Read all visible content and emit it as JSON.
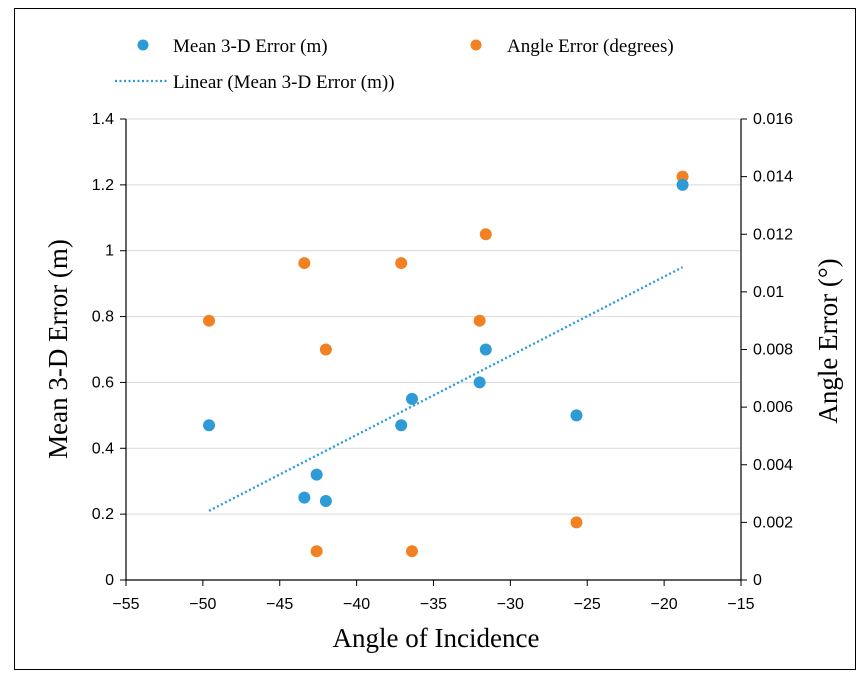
{
  "chart_data": {
    "type": "scatter",
    "xlabel": "Angle of Incidence",
    "ylabel": "Mean 3-D Error (m)",
    "y2label": "Angle Error (°)",
    "xlim": [
      -55,
      -15
    ],
    "ylim": [
      0,
      1.4
    ],
    "y2lim": [
      0,
      0.016
    ],
    "xticks": [
      "−55",
      "−50",
      "−45",
      "−40",
      "−35",
      "−30",
      "−25",
      "−20",
      "−15"
    ],
    "yticks": [
      "0",
      "0.2",
      "0.4",
      "0.6",
      "0.8",
      "1",
      "1.2",
      "1.4"
    ],
    "y2ticks": [
      "0",
      "0.002",
      "0.004",
      "0.006",
      "0.008",
      "0.01",
      "0.012",
      "0.014",
      "0.016"
    ],
    "grid": "horizontal",
    "legend_position": "top",
    "series": [
      {
        "name": "Mean 3-D Error (m)",
        "axis": "left",
        "color": "#2E9BD6",
        "points": [
          {
            "x": -49.6,
            "y": 0.47
          },
          {
            "x": -43.4,
            "y": 0.25
          },
          {
            "x": -42.6,
            "y": 0.32
          },
          {
            "x": -42.0,
            "y": 0.24
          },
          {
            "x": -37.1,
            "y": 0.47
          },
          {
            "x": -36.4,
            "y": 0.55
          },
          {
            "x": -32.0,
            "y": 0.6
          },
          {
            "x": -31.6,
            "y": 0.7
          },
          {
            "x": -25.7,
            "y": 0.5
          },
          {
            "x": -18.8,
            "y": 1.2
          }
        ]
      },
      {
        "name": "Angle Error (degrees)",
        "axis": "right",
        "color": "#F28123",
        "points": [
          {
            "x": -49.6,
            "y": 0.009
          },
          {
            "x": -43.4,
            "y": 0.011
          },
          {
            "x": -42.6,
            "y": 0.001
          },
          {
            "x": -42.0,
            "y": 0.008
          },
          {
            "x": -37.1,
            "y": 0.011
          },
          {
            "x": -36.4,
            "y": 0.001
          },
          {
            "x": -32.0,
            "y": 0.009
          },
          {
            "x": -31.6,
            "y": 0.012
          },
          {
            "x": -25.7,
            "y": 0.002
          },
          {
            "x": -18.8,
            "y": 0.014
          }
        ]
      }
    ],
    "trendline": {
      "name": "Linear (Mean 3-D Error (m))",
      "of_series": "Mean 3-D Error (m)",
      "style": "dotted",
      "color": "#2E9BD6",
      "x_range": [
        -49.6,
        -18.8
      ],
      "y_at_start": 0.21,
      "y_at_end": 0.95
    }
  }
}
